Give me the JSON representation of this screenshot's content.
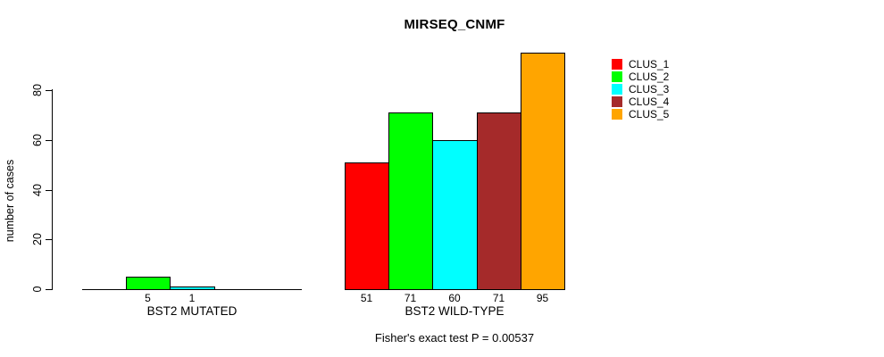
{
  "title": "MIRSEQ_CNMF",
  "footer": "Fisher's exact test P = 0.00537",
  "chart_data": {
    "type": "bar",
    "title": "MIRSEQ_CNMF",
    "ylabel": "number of cases",
    "xlabel": "",
    "ylim": [
      0,
      95
    ],
    "yticks": [
      0,
      20,
      40,
      60,
      80
    ],
    "grid": false,
    "legend_position": "right",
    "clusters": [
      "CLUS_1",
      "CLUS_2",
      "CLUS_3",
      "CLUS_4",
      "CLUS_5"
    ],
    "colors": [
      "#ff0000",
      "#00ff00",
      "#00ffff",
      "#a52a2a",
      "#ffa500"
    ],
    "groups": [
      {
        "label": "BST2 MUTATED",
        "values": [
          0,
          5,
          1,
          0,
          0
        ],
        "bar_labels": [
          "",
          "5",
          "1",
          "",
          ""
        ]
      },
      {
        "label": "BST2 WILD-TYPE",
        "values": [
          51,
          71,
          60,
          71,
          95
        ],
        "bar_labels": [
          "51",
          "71",
          "60",
          "71",
          "95"
        ]
      }
    ],
    "annotation": "Fisher's exact test P = 0.00537"
  }
}
